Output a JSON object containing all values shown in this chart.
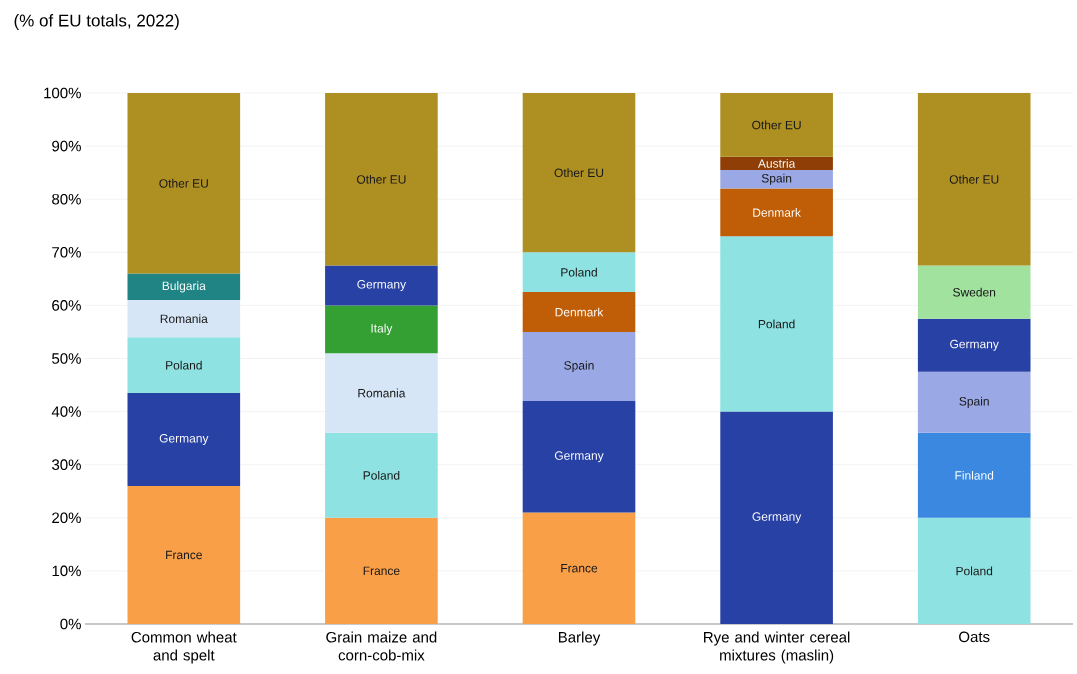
{
  "chart_data": {
    "type": "bar",
    "stacked": true,
    "subtitle": "(% of EU totals, 2022)",
    "categories": [
      "Common wheat and spelt",
      "Grain maize and corn-cob-mix",
      "Barley",
      "Rye and winter cereal mixtures (maslin)",
      "Oats"
    ],
    "series": [
      {
        "values": [
          26,
          20,
          21,
          40,
          20
        ],
        "colors": [
          "#f99f48",
          "#f99f48",
          "#f99f48",
          "#2841a4",
          "#8fe2e2"
        ],
        "value_labels": [
          "France",
          "France",
          "France",
          "Germany",
          "Poland"
        ]
      },
      {
        "values": [
          17.5,
          16,
          21,
          33,
          16
        ],
        "colors": [
          "#2841a4",
          "#8fe2e2",
          "#2841a4",
          "#8fe2e2",
          "#3a88e0"
        ],
        "value_labels": [
          "Germany",
          "Poland",
          "Germany",
          "Poland",
          "Finland"
        ]
      },
      {
        "values": [
          10.5,
          15,
          13,
          9,
          11.5
        ],
        "colors": [
          "#8fe2e2",
          "#d6e6f6",
          "#9aa9e6",
          "#c05e08",
          "#9aa9e6"
        ],
        "value_labels": [
          "Poland",
          "Romania",
          "Spain",
          "Denmark",
          "Spain"
        ]
      },
      {
        "values": [
          7,
          9,
          7.5,
          3.5,
          10
        ],
        "colors": [
          "#d6e6f6",
          "#34a034",
          "#c05e08",
          "#9aa9e6",
          "#2841a4"
        ],
        "value_labels": [
          "Romania",
          "Italy",
          "Denmark",
          "Spain",
          "Germany"
        ]
      },
      {
        "values": [
          5,
          7.5,
          7.5,
          2.5,
          10
        ],
        "colors": [
          "#208484",
          "#2841a4",
          "#8fe2e2",
          "#8f3f05",
          "#a2e29f"
        ],
        "value_labels": [
          "Bulgaria",
          "Germany",
          "Poland",
          "Austria",
          "Sweden"
        ]
      },
      {
        "values": [
          34,
          32.5,
          30,
          12,
          32.5
        ],
        "colors": [
          "#ae8f21",
          "#ae8f21",
          "#ae8f21",
          "#ae8f21",
          "#ae8f21"
        ],
        "value_labels": [
          "Other EU",
          "Other EU",
          "Other EU",
          "Other EU",
          "Other EU"
        ]
      }
    ],
    "ylim": [
      0,
      100
    ],
    "yticks": [
      {
        "value": 0,
        "label": "0%"
      },
      {
        "value": 10,
        "label": "10%"
      },
      {
        "value": 20,
        "label": "20%"
      },
      {
        "value": 30,
        "label": "30%"
      },
      {
        "value": 40,
        "label": "40%"
      },
      {
        "value": 50,
        "label": "50%"
      },
      {
        "value": 60,
        "label": "60%"
      },
      {
        "value": 70,
        "label": "70%"
      },
      {
        "value": 80,
        "label": "80%"
      },
      {
        "value": 90,
        "label": "90%"
      },
      {
        "value": 100,
        "label": "100%"
      }
    ],
    "grid": "y"
  }
}
